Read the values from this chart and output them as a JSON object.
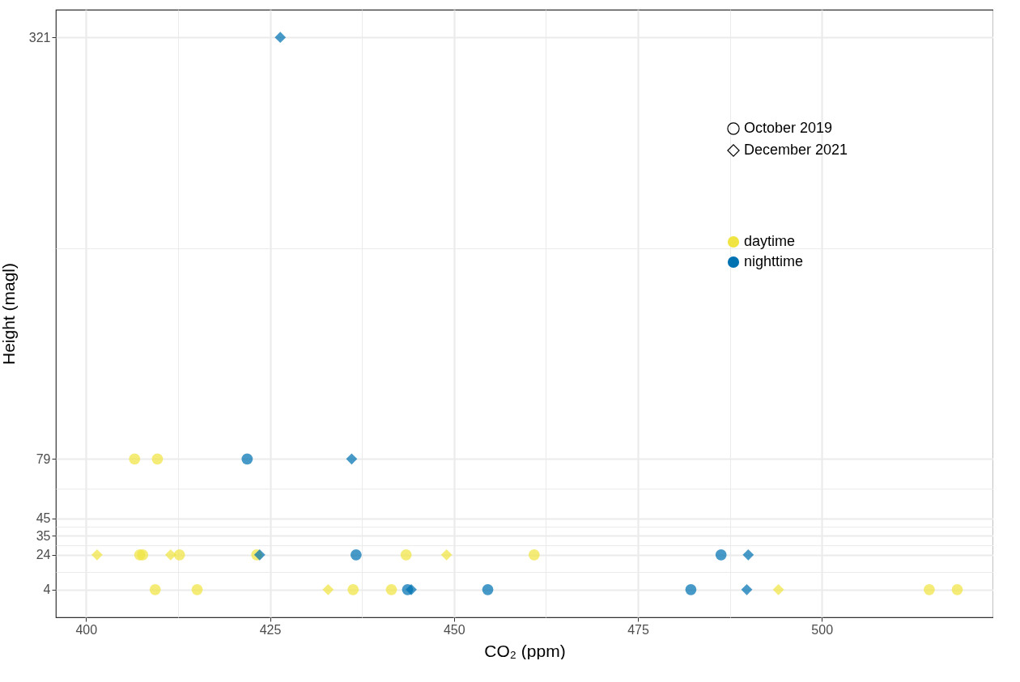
{
  "chart_data": {
    "type": "scatter",
    "xlabel": "CO₂ (ppm)",
    "ylabel": "Height (magl)",
    "xlim": [
      395.9,
      523.3
    ],
    "xticks": [
      400,
      425,
      450,
      475,
      500
    ],
    "ylim": [
      -11.85,
      336.85
    ],
    "yticks": [
      4,
      24,
      35,
      45,
      79,
      321
    ],
    "grid": true,
    "legend": "top right",
    "annotations": [
      "October 2019",
      "December 2021"
    ],
    "series": [
      {
        "name": "daytime",
        "color": "#f0e442",
        "marker": "circle",
        "x": [
          406.6,
          409.7,
          407.3,
          407.7,
          412.7,
          423.2,
          443.5,
          460.9,
          409.4,
          415.1,
          436.3,
          441.5,
          514.6,
          518.4
        ],
        "values": [
          79,
          79,
          24,
          24,
          24,
          24,
          24,
          24,
          4,
          4,
          4,
          4,
          4,
          4
        ]
      },
      {
        "name": "nighttime",
        "color": "#0072b2",
        "marker": "circle",
        "x": [
          421.9,
          436.7,
          486.3,
          443.7,
          454.6,
          482.2
        ],
        "values": [
          79,
          24,
          24,
          4,
          4,
          4
        ]
      },
      {
        "color": "#f0e442",
        "marker": "diamond",
        "x": [
          401.5,
          411.5,
          449.0,
          432.9,
          494.1
        ],
        "values": [
          24,
          24,
          24,
          4,
          4
        ]
      },
      {
        "color": "#0072b2",
        "marker": "diamond",
        "x": [
          436.1,
          426.4,
          423.6,
          490.0,
          444.2,
          489.8
        ],
        "values": [
          79,
          321,
          24,
          24,
          4,
          4
        ]
      }
    ]
  }
}
